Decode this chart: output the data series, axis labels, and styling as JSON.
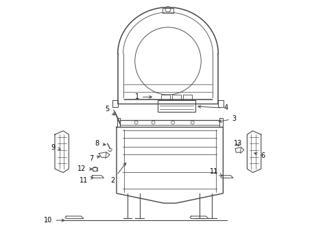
{
  "title": "",
  "background_color": "#ffffff",
  "line_color": "#444444",
  "label_color": "#000000",
  "figsize": [
    4.9,
    3.6
  ],
  "dpi": 100
}
